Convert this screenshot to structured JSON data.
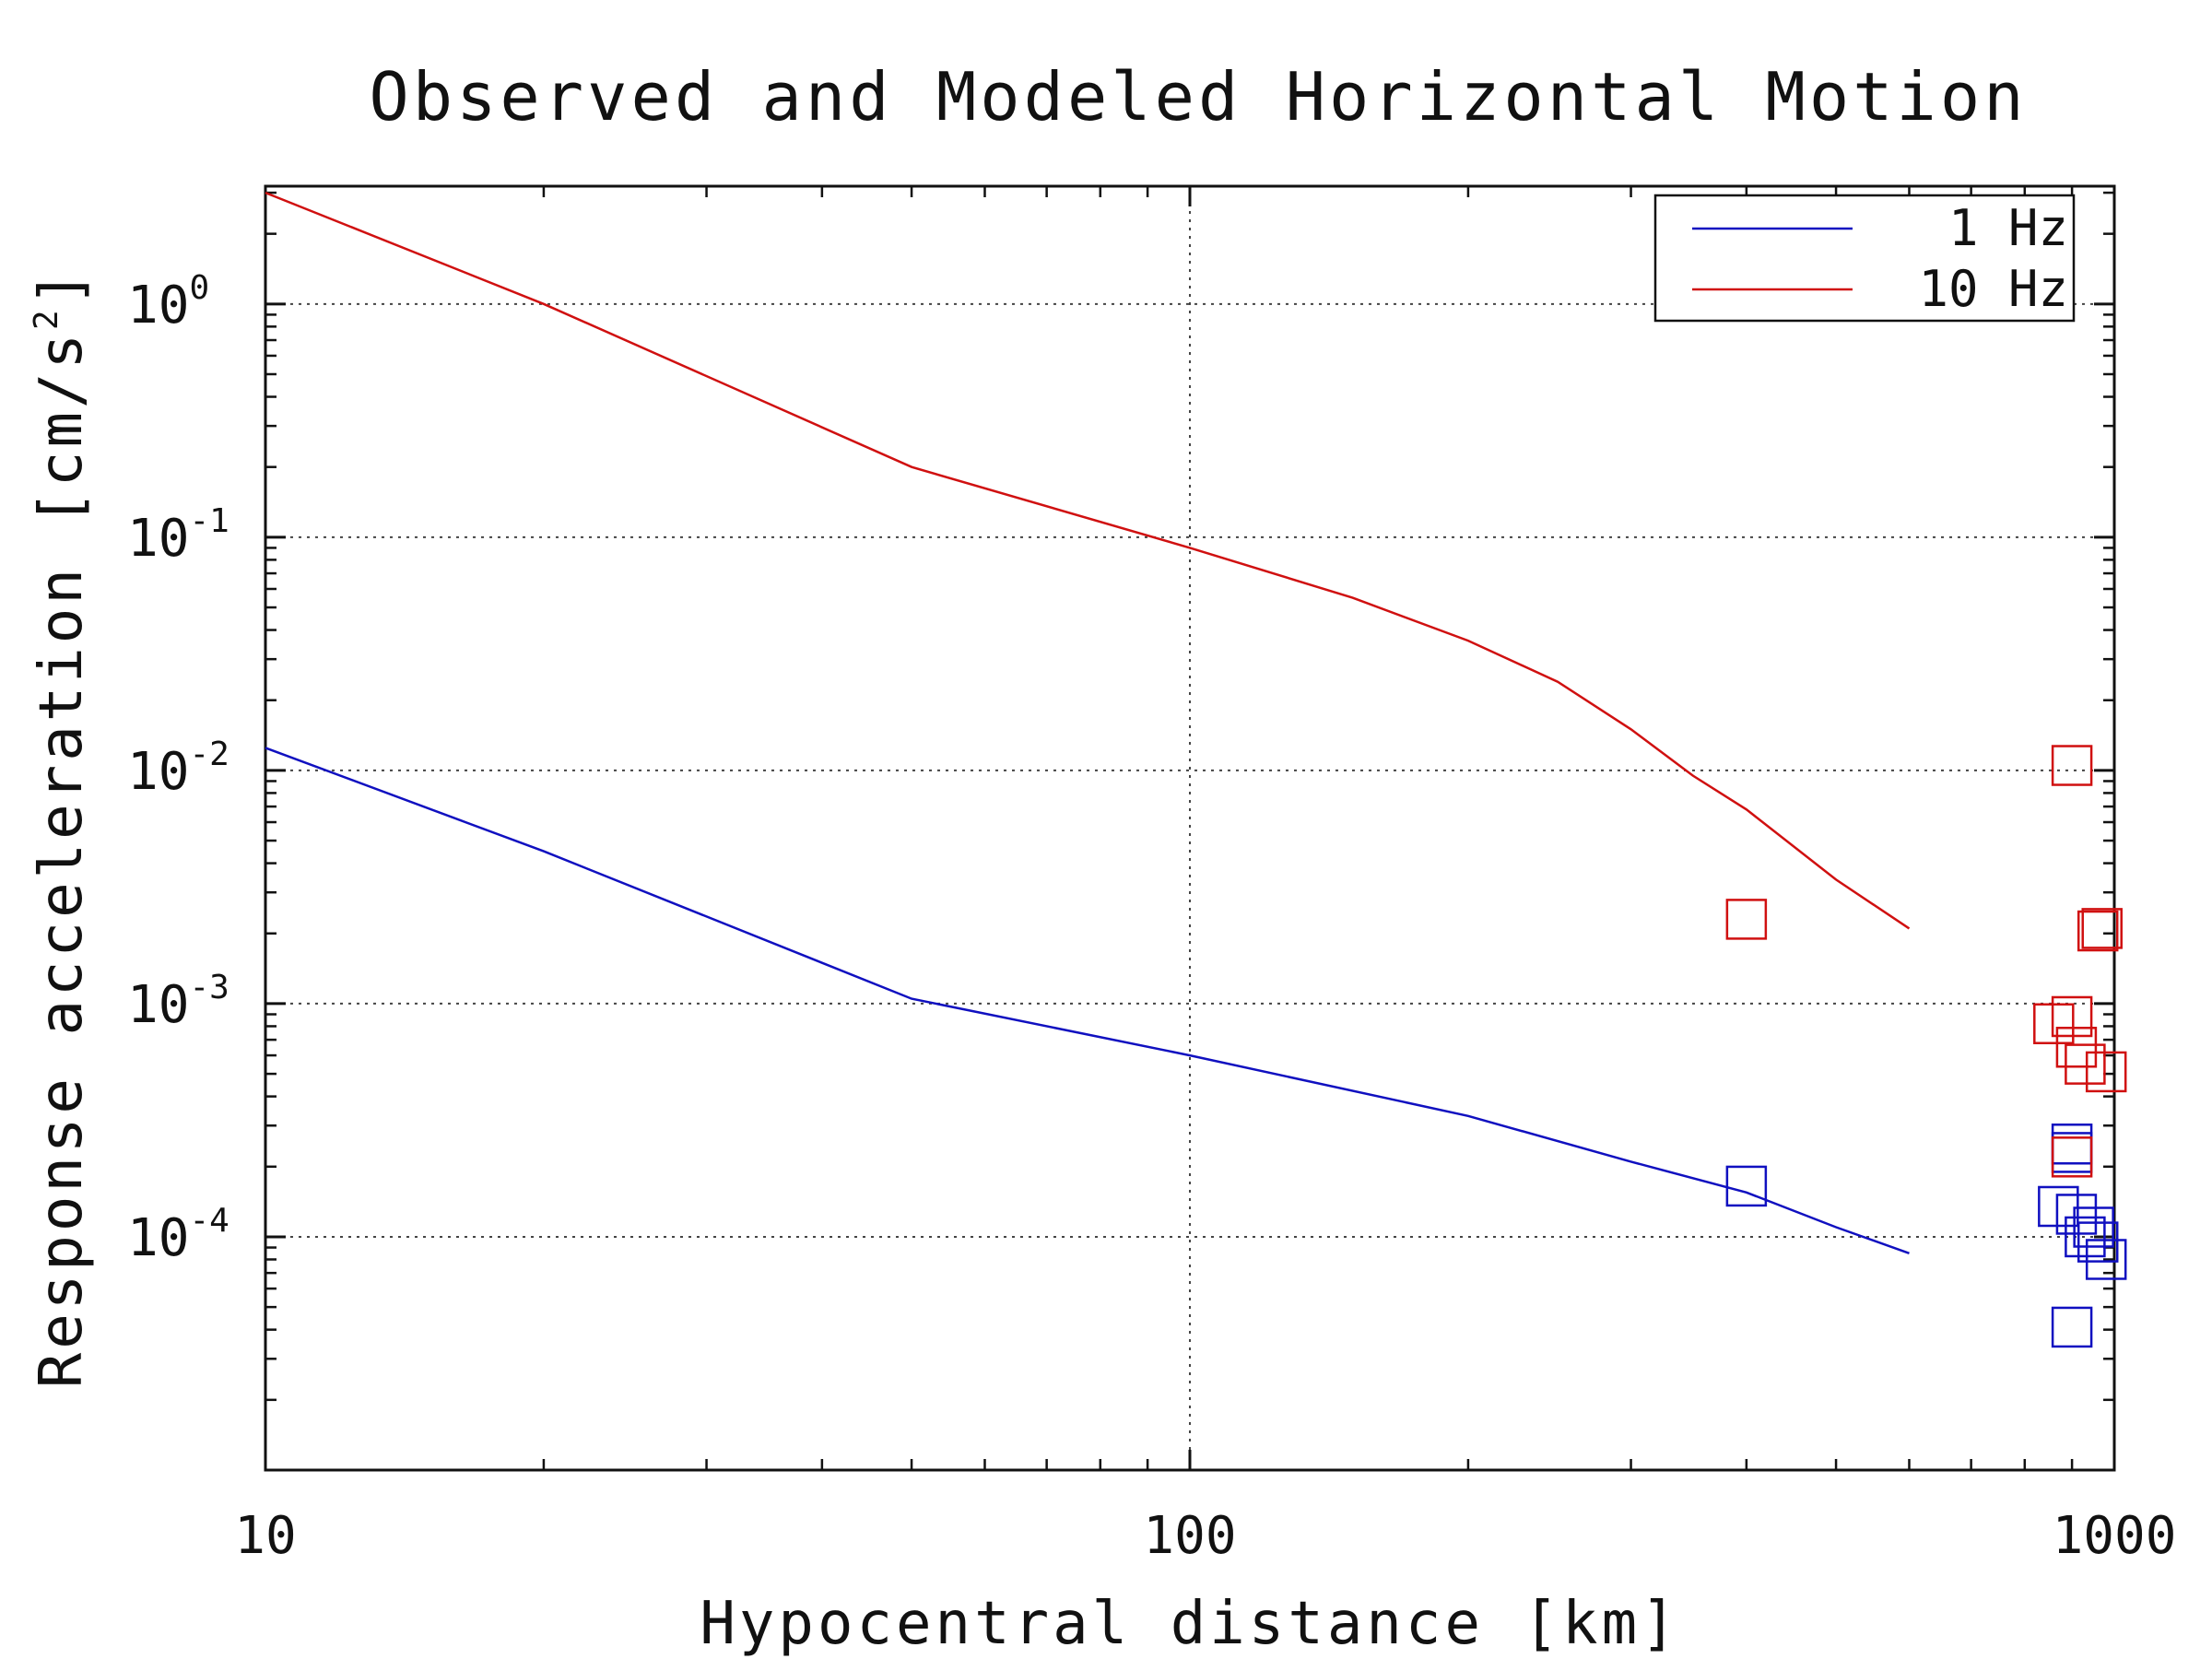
{
  "chart_data": {
    "type": "scatter",
    "title": "Observed and Modeled Horizontal Motion",
    "xlabel": "Hypocentral distance [km]",
    "ylabel": "Response acceleration [cm/s^2]",
    "ylabel_text": "Response acceleration [cm/s",
    "ylabel_sup": "2",
    "ylabel_end": "]",
    "x_scale": "log",
    "y_scale": "log",
    "xlim": [
      10,
      1000
    ],
    "ylim": [
      1e-05,
      3.2
    ],
    "x_ticks": [
      {
        "value": 10,
        "label": "10"
      },
      {
        "value": 100,
        "label": "100"
      },
      {
        "value": 1000,
        "label": "1000"
      }
    ],
    "y_ticks": [
      {
        "value": 1,
        "base": "10",
        "exp": "0"
      },
      {
        "value": 0.1,
        "base": "10",
        "exp": "-1"
      },
      {
        "value": 0.01,
        "base": "10",
        "exp": "-2"
      },
      {
        "value": 0.001,
        "base": "10",
        "exp": "-3"
      },
      {
        "value": 0.0001,
        "base": "10",
        "exp": "-4"
      }
    ],
    "grid": "dotted at major ticks",
    "legend_position": "top-right",
    "series": [
      {
        "name": "1 Hz",
        "color": "#1010c0",
        "line": [
          [
            10,
            0.0125
          ],
          [
            20,
            0.0045
          ],
          [
            50,
            0.00105
          ],
          [
            100,
            0.0006
          ],
          [
            200,
            0.00033
          ],
          [
            300,
            0.00021
          ],
          [
            400,
            0.000155
          ],
          [
            500,
            0.00011
          ],
          [
            600,
            8.5e-05
          ]
        ],
        "observed": [
          [
            400,
            0.000165
          ],
          [
            870,
            0.000135
          ],
          [
            900,
            0.00025
          ],
          [
            900,
            0.00023
          ],
          [
            910,
            0.000125
          ],
          [
            930,
            0.0001
          ],
          [
            950,
            0.00011
          ],
          [
            960,
            9.5e-05
          ],
          [
            980,
            8e-05
          ],
          [
            900,
            4.1e-05
          ]
        ]
      },
      {
        "name": "10 Hz",
        "color": "#d01010",
        "line": [
          [
            10,
            3.0
          ],
          [
            20,
            1.0
          ],
          [
            50,
            0.2
          ],
          [
            100,
            0.09
          ],
          [
            150,
            0.055
          ],
          [
            200,
            0.036
          ],
          [
            250,
            0.024
          ],
          [
            300,
            0.015
          ],
          [
            350,
            0.0095
          ],
          [
            400,
            0.0068
          ],
          [
            500,
            0.0034
          ],
          [
            600,
            0.0021
          ]
        ],
        "observed": [
          [
            400,
            0.0023
          ],
          [
            900,
            0.0105
          ],
          [
            970,
            0.0021
          ],
          [
            960,
            0.00205
          ],
          [
            860,
            0.00082
          ],
          [
            900,
            0.00088
          ],
          [
            910,
            0.00065
          ],
          [
            930,
            0.00055
          ],
          [
            980,
            0.00051
          ],
          [
            900,
            0.00022
          ]
        ]
      }
    ]
  }
}
